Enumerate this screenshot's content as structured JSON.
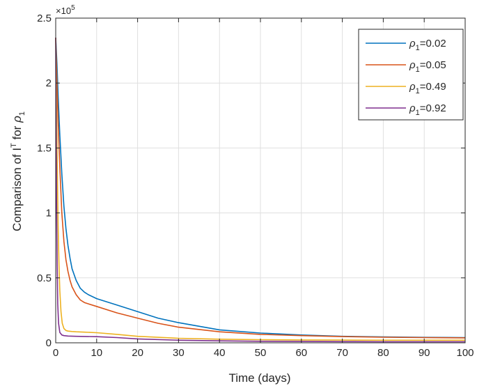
{
  "chart_data": {
    "type": "line",
    "xlabel": "Time (days)",
    "ylabel": {
      "prefix": "Comparison of I",
      "sup": "T",
      "middle": " for ",
      "rho": "ρ",
      "sub": "1"
    },
    "y_exponent": {
      "base": "×10",
      "power": "5"
    },
    "xlim": [
      0,
      100
    ],
    "ylim": [
      0,
      250000
    ],
    "xticks": [
      0,
      10,
      20,
      30,
      40,
      50,
      60,
      70,
      80,
      90,
      100
    ],
    "yticks": [
      0,
      50000,
      100000,
      150000,
      200000,
      250000
    ],
    "ytick_labels": [
      "0",
      "0.5",
      "1",
      "1.5",
      "2",
      "2.5"
    ],
    "grid": true,
    "legend_position": "top-right",
    "series": [
      {
        "name": {
          "rho": "ρ",
          "sub": "1",
          "value": "=0.02"
        },
        "color": "#0072BD",
        "x": [
          0,
          0.3,
          0.6,
          1,
          1.5,
          2,
          2.5,
          3,
          3.5,
          4,
          5,
          6,
          7,
          8,
          10,
          15,
          20,
          25,
          30,
          40,
          50,
          60,
          70,
          80,
          90,
          100
        ],
        "y": [
          235000,
          215000,
          190000,
          160000,
          130000,
          105000,
          88000,
          75000,
          65000,
          57000,
          48000,
          42000,
          39000,
          37000,
          34000,
          29000,
          24000,
          19000,
          15500,
          10000,
          7500,
          6000,
          5000,
          4500,
          4200,
          4000
        ]
      },
      {
        "name": {
          "rho": "ρ",
          "sub": "1",
          "value": "=0.05"
        },
        "color": "#D95319",
        "x": [
          0,
          0.3,
          0.6,
          1,
          1.5,
          2,
          2.5,
          3,
          3.5,
          4,
          5,
          6,
          7,
          8,
          10,
          15,
          20,
          25,
          30,
          40,
          50,
          60,
          70,
          80,
          90,
          100
        ],
        "y": [
          235000,
          200000,
          170000,
          135000,
          100000,
          78000,
          64000,
          55000,
          48000,
          43000,
          37000,
          33000,
          31000,
          30000,
          28000,
          23000,
          19000,
          15000,
          12000,
          8500,
          6500,
          5500,
          4800,
          4300,
          4000,
          3800
        ]
      },
      {
        "name": {
          "rho": "ρ",
          "sub": "1",
          "value": "=0.49"
        },
        "color": "#EDB120",
        "x": [
          0,
          0.2,
          0.4,
          0.6,
          0.8,
          1,
          1.3,
          1.6,
          2,
          2.5,
          3,
          4,
          5,
          7,
          10,
          15,
          20,
          30,
          40,
          50,
          60,
          70,
          80,
          90,
          100
        ],
        "y": [
          235000,
          180000,
          130000,
          90000,
          60000,
          40000,
          24000,
          15000,
          11000,
          9500,
          9000,
          8700,
          8500,
          8200,
          7800,
          6500,
          5000,
          3500,
          2800,
          2400,
          2200,
          2100,
          2000,
          2000,
          2000
        ]
      },
      {
        "name": {
          "rho": "ρ",
          "sub": "1",
          "value": "=0.92"
        },
        "color": "#7E2F8E",
        "x": [
          0,
          0.1,
          0.2,
          0.35,
          0.5,
          0.7,
          1,
          1.5,
          2,
          3,
          5,
          10,
          15,
          20,
          30,
          40,
          50,
          60,
          70,
          80,
          90,
          100
        ],
        "y": [
          235000,
          170000,
          110000,
          60000,
          30000,
          15000,
          8000,
          6000,
          5500,
          5200,
          5000,
          4700,
          4000,
          3000,
          2000,
          1500,
          1200,
          1000,
          900,
          800,
          800,
          800
        ]
      }
    ]
  }
}
